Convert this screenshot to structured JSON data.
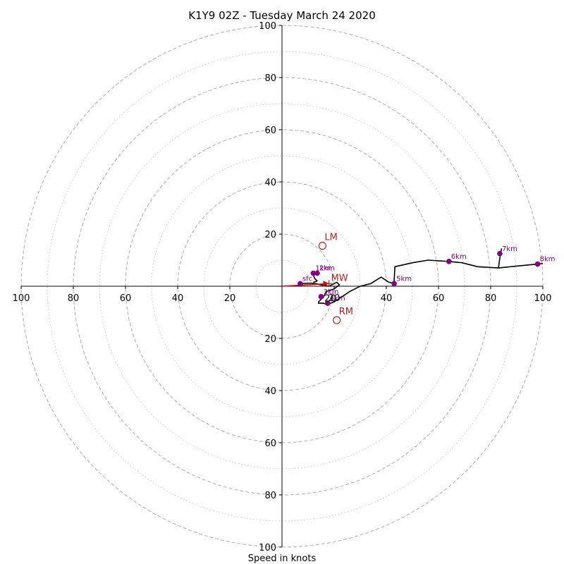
{
  "chart_data": {
    "type": "scatter",
    "title": "K1Y9 02Z - Tuesday March 24 2020",
    "xlabel": "Speed in knots",
    "range_knots": 100,
    "rings_dashed": [
      20,
      40,
      60,
      80,
      100
    ],
    "rings_dotted": [
      10,
      30,
      50,
      70,
      90
    ],
    "ticks_x": [
      "100",
      "80",
      "60",
      "40",
      "20",
      "20",
      "40",
      "60",
      "80",
      "100"
    ],
    "ticks_x_values": [
      -100,
      -80,
      -60,
      -40,
      -20,
      20,
      40,
      60,
      80,
      100
    ],
    "ticks_y": [
      "100",
      "80",
      "60",
      "40",
      "20",
      "20",
      "40",
      "60",
      "80",
      "100"
    ],
    "ticks_y_values": [
      100,
      80,
      60,
      40,
      20,
      -20,
      -40,
      -60,
      -80,
      -100
    ],
    "hodograph_color": "#000000",
    "hodograph": [
      [
        7,
        1
      ],
      [
        11,
        1.2
      ],
      [
        13,
        1
      ],
      [
        15,
        0.5
      ],
      [
        18,
        0
      ],
      [
        20,
        1
      ],
      [
        21,
        1.5
      ],
      [
        22,
        0.5
      ],
      [
        20,
        -1
      ],
      [
        17,
        -2
      ],
      [
        16,
        -4
      ],
      [
        14,
        -6
      ],
      [
        14,
        -6.5
      ],
      [
        16,
        -6.5
      ],
      [
        17,
        -7
      ],
      [
        20,
        -6
      ],
      [
        23,
        -4
      ],
      [
        26,
        -2
      ],
      [
        30,
        0
      ],
      [
        34,
        1
      ],
      [
        38,
        3.5
      ],
      [
        41,
        1.5
      ],
      [
        43,
        1
      ],
      [
        43,
        2.5
      ],
      [
        43.3,
        7.5
      ],
      [
        50,
        9
      ],
      [
        56,
        10
      ],
      [
        64,
        9.5
      ],
      [
        69,
        9
      ],
      [
        75,
        7.5
      ],
      [
        83,
        7
      ],
      [
        91,
        7.8
      ],
      [
        98,
        8.5
      ],
      [
        100,
        8.7
      ]
    ],
    "hodograph_branches": [
      [
        [
          11.5,
          5
        ],
        [
          12,
          4.5
        ],
        [
          12.5,
          3
        ],
        [
          13.5,
          2
        ],
        [
          12,
          1.5
        ]
      ],
      [
        [
          83,
          7
        ],
        [
          83.3,
          9.5
        ],
        [
          83.8,
          12.5
        ],
        [
          84.2,
          14.5
        ]
      ]
    ],
    "height_markers": [
      {
        "label": "sfc",
        "u": 7,
        "v": 1
      },
      {
        "label": "1km",
        "u": 12,
        "v": 5
      },
      {
        "label": "2km",
        "u": 13.5,
        "v": 5
      },
      {
        "label": "3km",
        "u": 15,
        "v": -4
      },
      {
        "label": "4km",
        "u": 17.5,
        "v": -6.5
      },
      {
        "label": "5km",
        "u": 43,
        "v": 1
      },
      {
        "label": "6km",
        "u": 64,
        "v": 9.5
      },
      {
        "label": "7km",
        "u": 83.5,
        "v": 12.5
      },
      {
        "label": "8km",
        "u": 98,
        "v": 8.5
      }
    ],
    "marker_color": "#800080",
    "storm_motions": [
      {
        "label": "LM",
        "u": 15.5,
        "v": 15.5
      },
      {
        "label": "RM",
        "u": 21,
        "v": -13
      }
    ],
    "mean_wind": {
      "label": "MW",
      "u": 18,
      "v": 1
    },
    "motion_color": "#b22222",
    "vector": {
      "from": [
        0,
        0
      ],
      "to": [
        18,
        1
      ],
      "color": "#dd0000"
    },
    "ring_label": {
      "text": "20",
      "u": 18.5,
      "v": -5
    }
  }
}
